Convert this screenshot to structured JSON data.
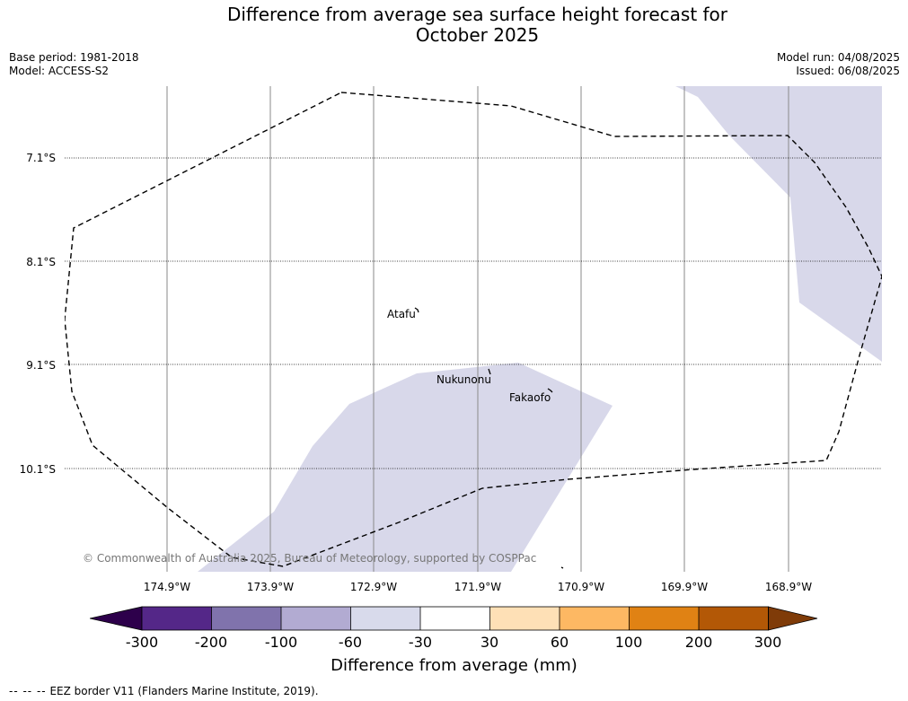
{
  "title": {
    "line1": "Difference from average sea surface height forecast for",
    "line2": "October 2025"
  },
  "meta": {
    "base_period": "Base period: 1981-2018",
    "model": "Model: ACCESS-S2",
    "model_run": "Model run: 04/08/2025",
    "issued": "Issued: 06/08/2025"
  },
  "map": {
    "lat_labels": [
      "7.1°S",
      "8.1°S",
      "9.1°S",
      "10.1°S"
    ],
    "lon_labels": [
      "174.9°W",
      "173.9°W",
      "172.9°W",
      "171.9°W",
      "170.9°W",
      "169.9°W",
      "168.9°W"
    ],
    "islands": {
      "atafu": "Atafu",
      "nukunonu": "Nukunonu",
      "fakaofo": "Fakaofo"
    },
    "copyright": "© Commonwealth of Australia 2025, Bureau of Meteorology, supported by COSPPac",
    "anomaly_fill_color": "#d8d8ea",
    "eez_line_color": "#000000"
  },
  "colorbar": {
    "ticks": [
      "-300",
      "-200",
      "-100",
      "-60",
      "-30",
      "30",
      "60",
      "100",
      "200",
      "300"
    ],
    "colors": [
      "#2d004b",
      "#542788",
      "#8073ac",
      "#b2abd2",
      "#d8daeb",
      "#ffffff",
      "#fee0b6",
      "#fdb863",
      "#e08214",
      "#b35806",
      "#7f3b08"
    ],
    "title": "Difference from average (mm)"
  },
  "footnote": {
    "dashes": "-- -- --",
    "text": "EEZ border V11 (Flanders Marine Institute, 2019)."
  }
}
